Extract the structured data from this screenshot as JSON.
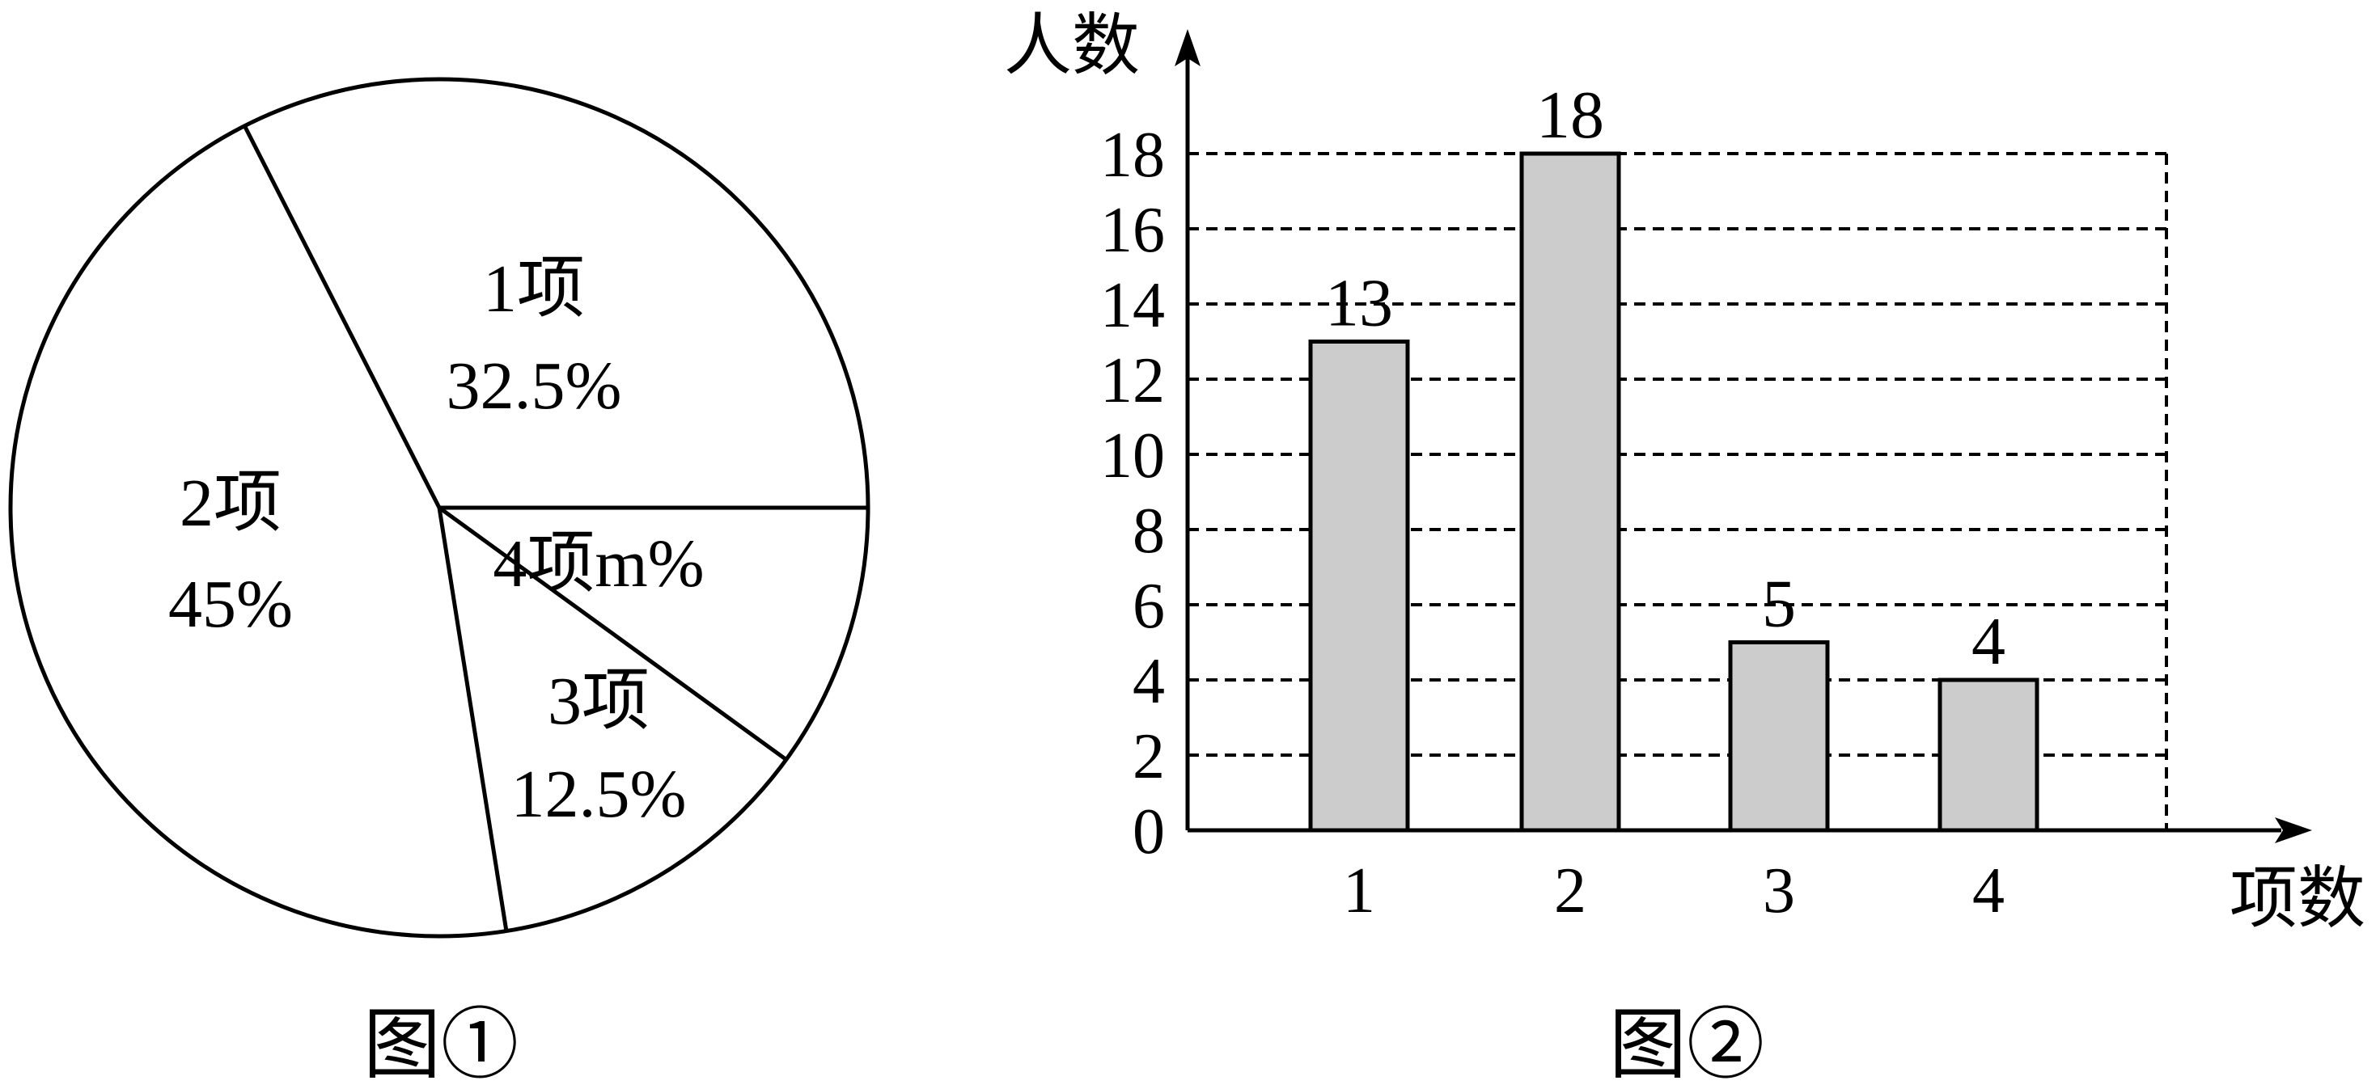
{
  "chart_data": [
    {
      "type": "pie",
      "caption": "图①",
      "slices": [
        {
          "label": "1项",
          "value_text": "32.5%",
          "value": 32.5
        },
        {
          "label": "2项",
          "value_text": "45%",
          "value": 45
        },
        {
          "label": "3项",
          "value_text": "12.5%",
          "value": 12.5
        },
        {
          "label": "4项",
          "value_text": "m%",
          "value": 10
        }
      ]
    },
    {
      "type": "bar",
      "caption": "图②",
      "xlabel": "项数",
      "ylabel": "人数",
      "categories": [
        "1",
        "2",
        "3",
        "4"
      ],
      "values": [
        13,
        18,
        5,
        4
      ],
      "data_labels": [
        "13",
        "18",
        "5",
        "4"
      ],
      "yticks": [
        0,
        2,
        4,
        6,
        8,
        10,
        12,
        14,
        16,
        18
      ],
      "ylim": [
        0,
        18
      ],
      "grid": true,
      "colors": {
        "bar_fill": "#cccccc",
        "stroke": "#000000"
      }
    }
  ]
}
